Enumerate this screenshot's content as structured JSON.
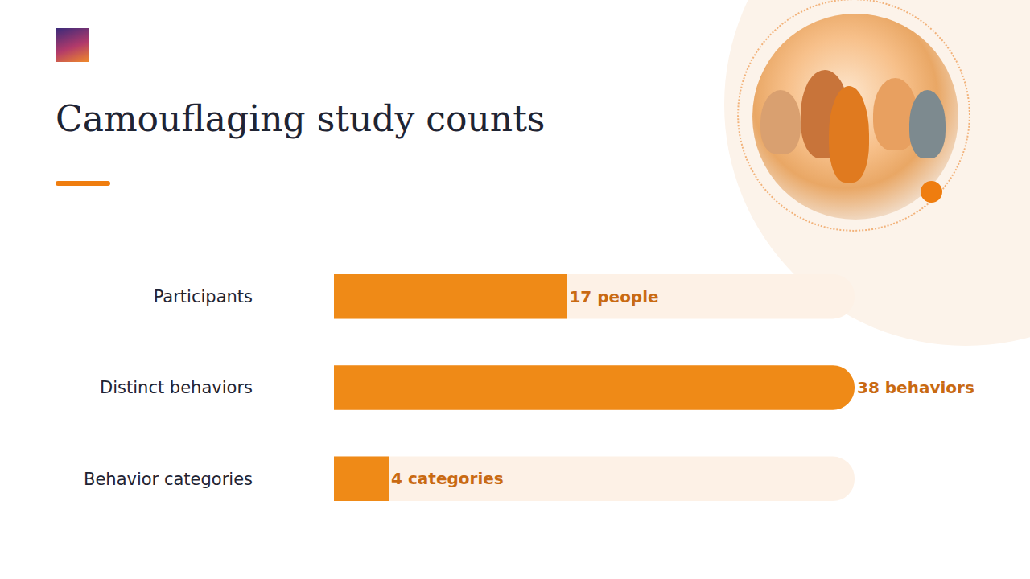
{
  "chart_data": {
    "type": "bar",
    "orientation": "horizontal",
    "title": "Camouflaging study counts",
    "categories": [
      "Participants",
      "Distinct behaviors",
      "Behavior categories"
    ],
    "values": [
      17,
      38,
      4
    ],
    "value_labels": [
      "17 people",
      "38 behaviors",
      "4 categories"
    ],
    "data_labels": true,
    "color": "#ef8a17",
    "xlim": [
      0,
      38
    ],
    "tick_labels": "y",
    "grid": false
  }
}
